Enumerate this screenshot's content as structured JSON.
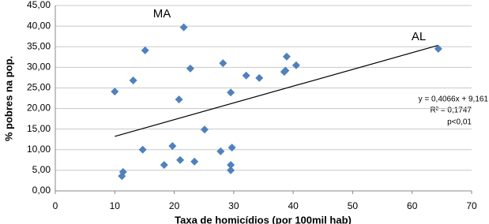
{
  "chart_data": {
    "type": "scatter",
    "x_label": "Taxa de homicídios (por 100mil hab)",
    "y_label": "% pobres na pop.",
    "annotations": [
      "MA",
      "AL",
      "y = 0,4066x + 9,161",
      "R² = 0,1747",
      "p<0,01"
    ],
    "trendline": {
      "slope": 0.4066,
      "intercept": 9.161,
      "color": "#000000"
    },
    "series": [
      {
        "name": "% pobres",
        "color": "#4f81bd",
        "x": [
          10,
          13.1,
          15.1,
          14.7,
          11.4,
          11.2,
          21.6,
          22.7,
          20.8,
          19.7,
          18.3,
          21.0,
          23.4,
          25.1,
          28.2,
          29.5,
          27.8,
          29.7,
          29.5,
          29.5,
          32.1,
          34.3,
          38.9,
          38.5,
          38.7,
          40.5,
          64.4
        ],
        "values": [
          24.1,
          26.8,
          34.1,
          10.0,
          4.6,
          3.6,
          39.7,
          29.7,
          22.2,
          10.9,
          6.3,
          7.5,
          7.1,
          14.9,
          31.0,
          23.9,
          9.6,
          10.5,
          6.3,
          5.0,
          28.0,
          27.4,
          32.6,
          28.9,
          29.2,
          30.5,
          34.5
        ]
      }
    ],
    "xlim": [
      0,
      70
    ],
    "xticks": [
      0,
      10,
      20,
      30,
      40,
      50,
      60,
      70
    ],
    "ylim": [
      0,
      45
    ],
    "yticks": [
      {
        "value": 0,
        "label": "0,00"
      },
      {
        "value": 5,
        "label": "5,00"
      },
      {
        "value": 10,
        "label": "10,00"
      },
      {
        "value": 15,
        "label": "15,00"
      },
      {
        "value": 20,
        "label": "20,00"
      },
      {
        "value": 25,
        "label": "25,00"
      },
      {
        "value": 30,
        "label": "30,00"
      },
      {
        "value": 35,
        "label": "35,00"
      },
      {
        "value": 40,
        "label": "40,00"
      },
      {
        "value": 45,
        "label": "45,00"
      }
    ],
    "grid": true
  }
}
